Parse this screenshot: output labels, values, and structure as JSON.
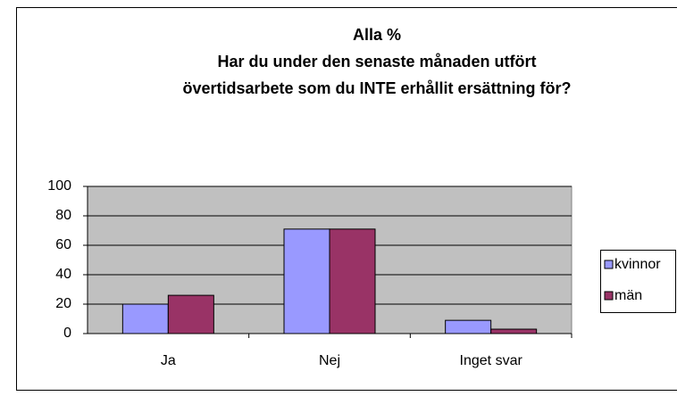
{
  "chart_data": {
    "type": "bar",
    "title": [
      "Alla %",
      "Har du under den senaste månaden utfört",
      "övertidsarbete som du INTE erhållit ersättning för?"
    ],
    "categories": [
      "Ja",
      "Nej",
      "Inget svar"
    ],
    "series": [
      {
        "name": "kvinnor",
        "color": "#9999ff",
        "values": [
          20,
          71,
          9
        ]
      },
      {
        "name": "män",
        "color": "#993366",
        "values": [
          26,
          71,
          3
        ]
      }
    ],
    "ylim": [
      0,
      100
    ],
    "yticks": [
      0,
      20,
      40,
      60,
      80,
      100
    ],
    "grid": true,
    "legend": "right"
  }
}
